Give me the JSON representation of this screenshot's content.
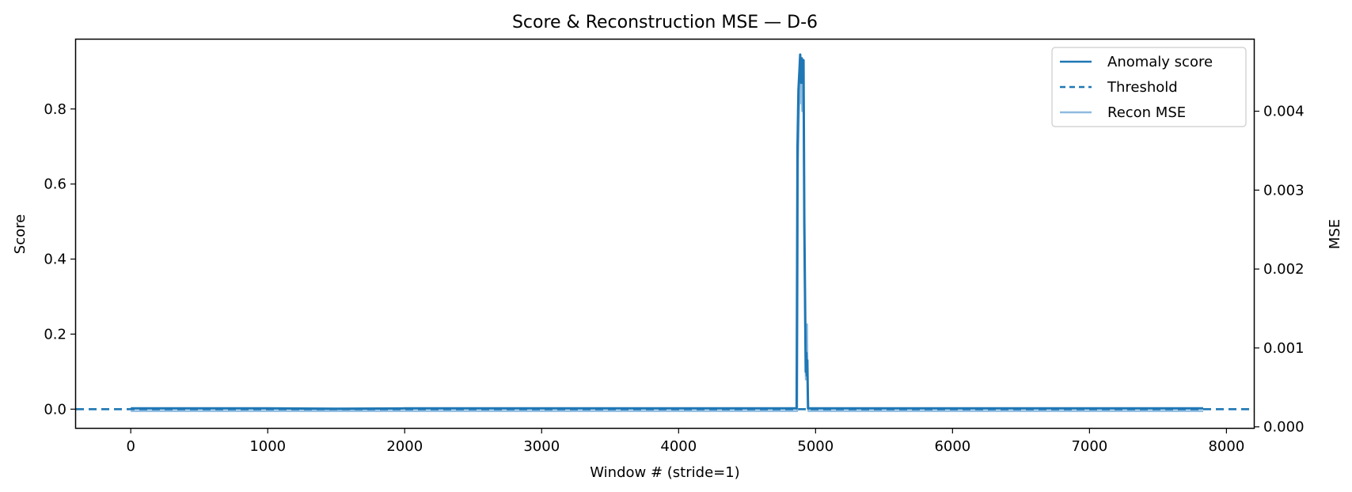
{
  "chart_data": {
    "type": "line",
    "title": "Score & Reconstruction MSE — D-6",
    "xlabel": "Window # (stride=1)",
    "ylabel": "Score",
    "y2label": "MSE",
    "xlim": [
      -400,
      8200
    ],
    "ylim": [
      -0.05,
      0.985
    ],
    "y2lim": [
      -1.36e-05,
      0.004908
    ],
    "xticks": [
      0,
      1000,
      2000,
      3000,
      4000,
      5000,
      6000,
      7000,
      8000
    ],
    "xtick_labels": [
      "0",
      "1000",
      "2000",
      "3000",
      "4000",
      "5000",
      "6000",
      "7000",
      "8000"
    ],
    "yticks": [
      0.0,
      0.2,
      0.4,
      0.6,
      0.8
    ],
    "ytick_labels": [
      "0.0",
      "0.2",
      "0.4",
      "0.6",
      "0.8"
    ],
    "y2ticks": [
      0.0,
      0.001,
      0.002,
      0.003,
      0.004
    ],
    "y2tick_labels": [
      "0.000",
      "0.001",
      "0.002",
      "0.003",
      "0.004"
    ],
    "grid": false,
    "legend_position": "top-right",
    "legend": [
      "Anomaly score",
      "Threshold",
      "Recon MSE"
    ],
    "colors": {
      "score": "#1f77b4",
      "threshold": "#1f77b4",
      "mse": "#8ebbe0",
      "axes": "#000000"
    },
    "series": [
      {
        "name": "Anomaly score",
        "axis": "left",
        "style": "solid",
        "x": [
          0,
          500,
          1000,
          1500,
          2000,
          2500,
          3000,
          3500,
          4000,
          4500,
          4850,
          4862,
          4868,
          4875,
          4882,
          4888,
          4895,
          4900,
          4905,
          4912,
          4918,
          4923,
          4928,
          4932,
          4936,
          4940,
          4945,
          4952,
          4958,
          5000,
          5500,
          6000,
          6500,
          7000,
          7500,
          7830
        ],
        "y": [
          0.002,
          0.002,
          0.002,
          0.001,
          0.002,
          0.002,
          0.002,
          0.002,
          0.002,
          0.002,
          0.002,
          0.002,
          0.7,
          0.85,
          0.9,
          0.945,
          0.87,
          0.935,
          0.87,
          0.93,
          0.5,
          0.3,
          0.1,
          0.15,
          0.09,
          0.13,
          0.002,
          0.002,
          0.002,
          0.002,
          0.002,
          0.002,
          0.002,
          0.002,
          0.002,
          0.002
        ]
      },
      {
        "name": "Threshold",
        "axis": "left",
        "style": "dashed",
        "x": [
          -400,
          8200
        ],
        "y": [
          0.0,
          0.0
        ]
      },
      {
        "name": "Recon MSE",
        "axis": "right",
        "style": "solid",
        "x": [
          0,
          500,
          1000,
          1500,
          2000,
          2500,
          3000,
          3500,
          4000,
          4500,
          4855,
          4866,
          4872,
          4878,
          4885,
          4890,
          4896,
          4902,
          4908,
          4913,
          4918,
          4924,
          4929,
          4934,
          4938,
          4942,
          4948,
          4956,
          5000,
          5500,
          6000,
          6500,
          7000,
          7500,
          7830
        ],
        "y": [
          0.0002,
          0.0002,
          0.0002,
          0.0002,
          0.0002,
          0.0002,
          0.0002,
          0.0002,
          0.0002,
          0.0002,
          0.0002,
          0.0002,
          0.0034,
          0.0039,
          0.0044,
          0.0041,
          0.0045,
          0.004,
          0.0044,
          0.0039,
          0.0025,
          0.0012,
          0.0006,
          0.0013,
          0.0013,
          0.0005,
          0.0002,
          0.0002,
          0.0002,
          0.0002,
          0.0002,
          0.0002,
          0.0002,
          0.0002,
          0.0002
        ]
      }
    ]
  }
}
